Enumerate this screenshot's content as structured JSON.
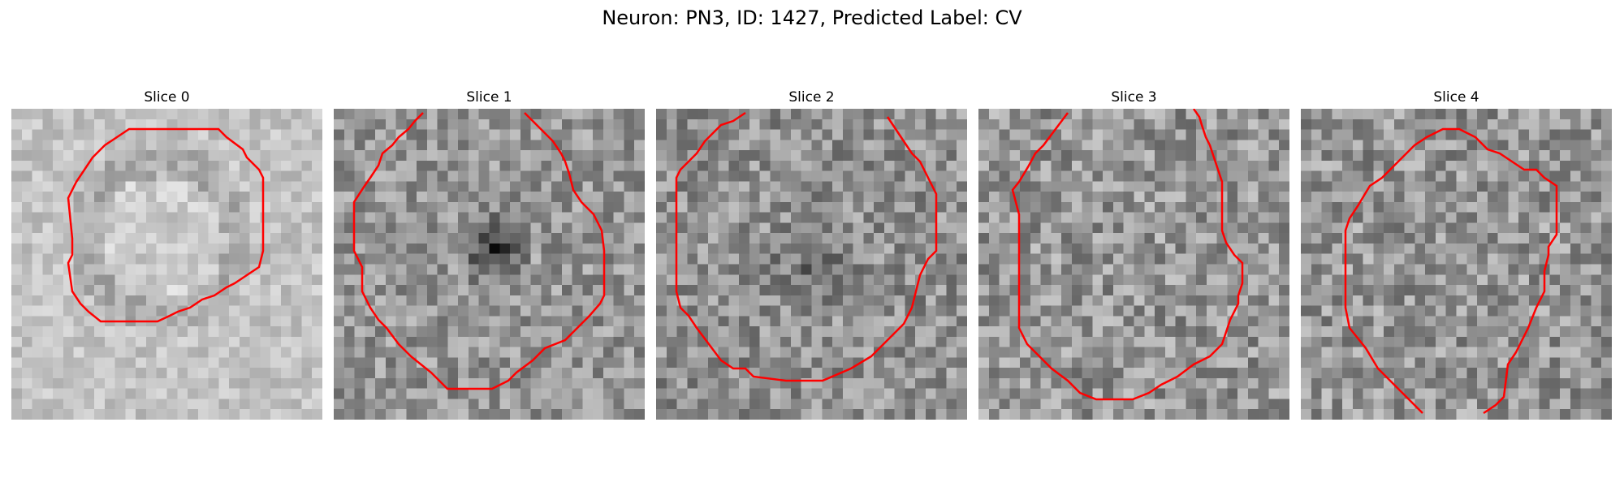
{
  "figure": {
    "title": "Neuron: PN3, ID: 1427, Predicted Label: CV"
  },
  "slices": [
    {
      "label": "Slice 0"
    },
    {
      "label": "Slice 1"
    },
    {
      "label": "Slice 2"
    },
    {
      "label": "Slice 3"
    },
    {
      "label": "Slice 4"
    }
  ],
  "colors": {
    "contour": "#ff0000",
    "grayscale_low": "#000000",
    "grayscale_high": "#ffffff"
  }
}
